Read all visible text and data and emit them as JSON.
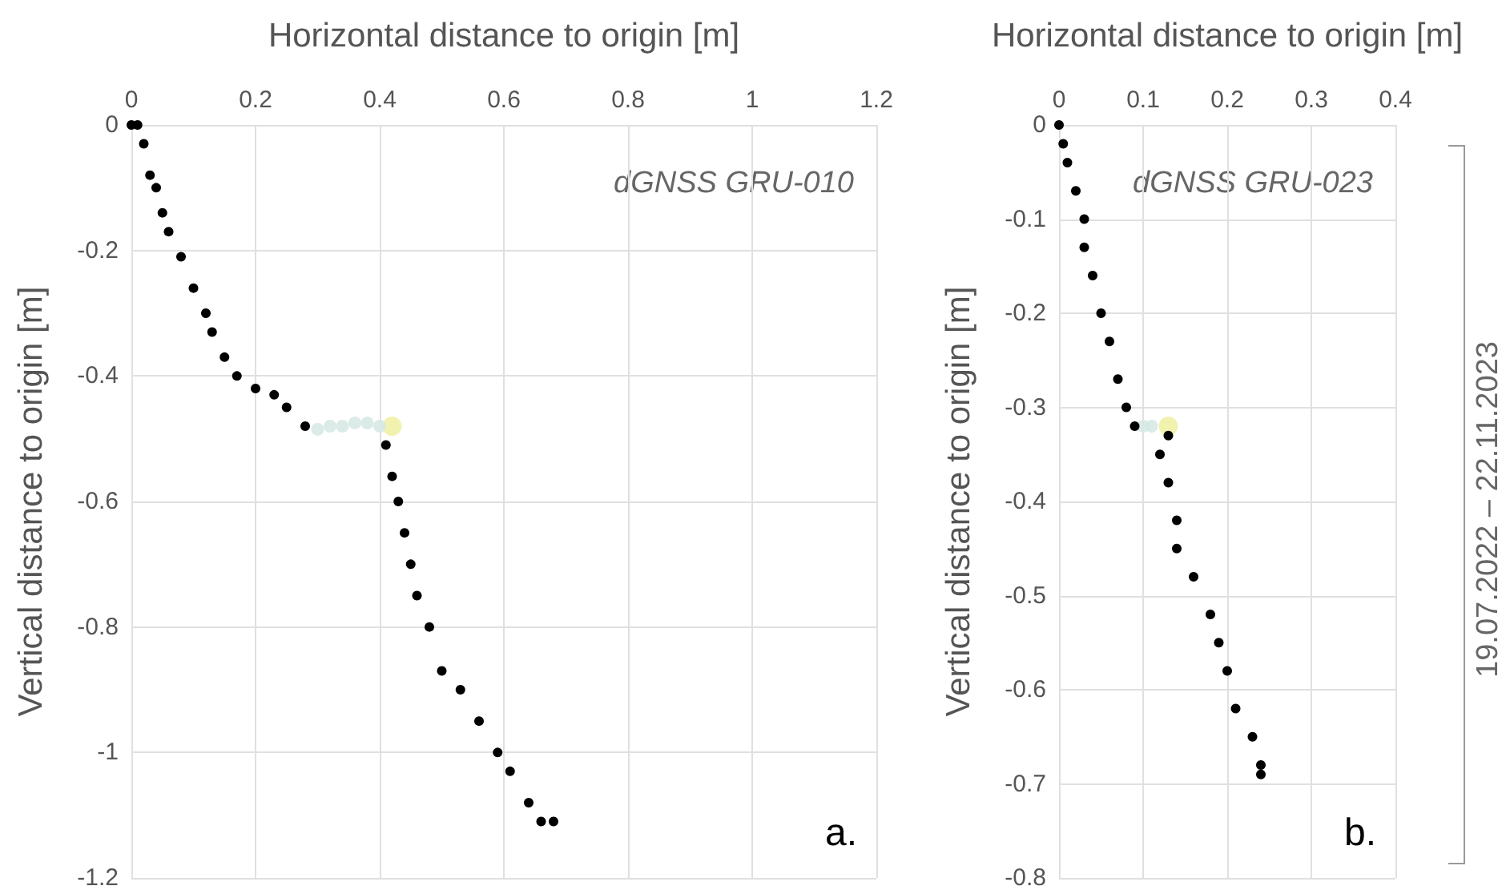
{
  "chart_data": [
    {
      "type": "scatter",
      "xlabel": "Horizontal distance to origin [m]",
      "ylabel": "Vertical distance to origin [m]",
      "xlim": [
        0,
        1.2
      ],
      "xticks": [
        0,
        0.2,
        0.4,
        0.6,
        0.8,
        1,
        1.2
      ],
      "ylim": [
        -1.2,
        0
      ],
      "yticks": [
        -1.2,
        -1,
        -0.8,
        -0.6,
        -0.4,
        -0.2,
        0
      ],
      "grid": true,
      "marker": "circle",
      "annotations": [
        "dGNSS GRU-010",
        "a."
      ],
      "series": [
        {
          "color": "#000000",
          "x": [
            0,
            0.01,
            0.02,
            0.03,
            0.04,
            0.05,
            0.06,
            0.08,
            0.1,
            0.12,
            0.13,
            0.15,
            0.17,
            0.2,
            0.23,
            0.25,
            0.28,
            0.41,
            0.42,
            0.43,
            0.44,
            0.45,
            0.46,
            0.48,
            0.5,
            0.53,
            0.56,
            0.59,
            0.61,
            0.64,
            0.66,
            0.68
          ],
          "values": [
            0,
            0,
            -0.03,
            -0.08,
            -0.1,
            -0.14,
            -0.17,
            -0.21,
            -0.26,
            -0.3,
            -0.33,
            -0.37,
            -0.4,
            -0.42,
            -0.43,
            -0.45,
            -0.48,
            -0.51,
            -0.56,
            -0.6,
            -0.65,
            -0.7,
            -0.75,
            -0.8,
            -0.87,
            -0.9,
            -0.95,
            -1,
            -1.03,
            -1.08,
            -1.11,
            -1.11
          ]
        },
        {
          "color": "#d5e8e4",
          "x": [
            0.3,
            0.32,
            0.34,
            0.36,
            0.38,
            0.4
          ],
          "values": [
            -0.485,
            -0.48,
            -0.48,
            -0.475,
            -0.475,
            -0.48
          ]
        },
        {
          "color": "#eef0a0",
          "x": [
            0.42
          ],
          "values": [
            -0.48
          ]
        }
      ]
    },
    {
      "type": "scatter",
      "xlabel": "Horizontal distance to origin [m]",
      "ylabel": "Vertical distance to origin [m]",
      "xlim": [
        0,
        0.4
      ],
      "xticks": [
        0,
        0.1,
        0.2,
        0.3,
        0.4
      ],
      "ylim": [
        -0.8,
        0
      ],
      "yticks": [
        -0.8,
        -0.7,
        -0.6,
        -0.5,
        -0.4,
        -0.3,
        -0.2,
        -0.1,
        0
      ],
      "grid": true,
      "marker": "circle",
      "annotations": [
        "dGNSS GRU-023",
        "b.",
        "19.07.2022 – 22.11.2023"
      ],
      "series": [
        {
          "color": "#000000",
          "x": [
            0,
            0.005,
            0.01,
            0.02,
            0.03,
            0.03,
            0.04,
            0.05,
            0.06,
            0.07,
            0.08,
            0.09,
            0.13,
            0.12,
            0.13,
            0.14,
            0.14,
            0.16,
            0.18,
            0.19,
            0.2,
            0.21,
            0.23,
            0.24,
            0.24
          ],
          "values": [
            0,
            -0.02,
            -0.04,
            -0.07,
            -0.1,
            -0.13,
            -0.16,
            -0.2,
            -0.23,
            -0.27,
            -0.3,
            -0.32,
            -0.33,
            -0.35,
            -0.38,
            -0.42,
            -0.45,
            -0.48,
            -0.52,
            -0.55,
            -0.58,
            -0.62,
            -0.65,
            -0.68,
            -0.69
          ]
        },
        {
          "color": "#d5e8e4",
          "x": [
            0.1,
            0.11
          ],
          "values": [
            -0.32,
            -0.32
          ]
        },
        {
          "color": "#eef0a0",
          "x": [
            0.13
          ],
          "values": [
            -0.32
          ]
        }
      ]
    }
  ]
}
